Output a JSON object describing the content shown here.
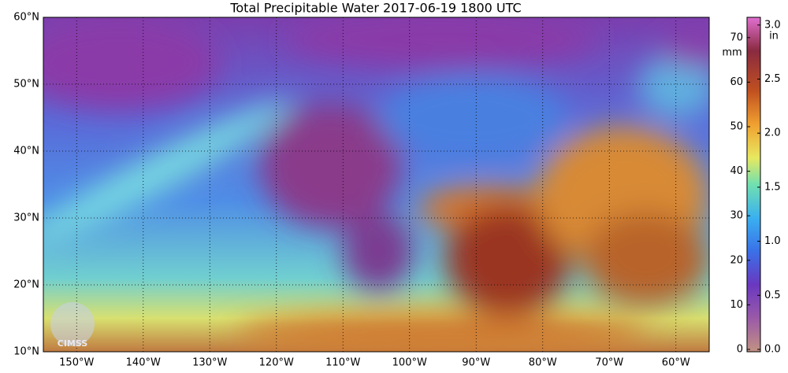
{
  "title": "Total Precipitable Water  2017-06-19 1800 UTC",
  "map": {
    "lat_labels": [
      "10°N",
      "20°N",
      "30°N",
      "40°N",
      "50°N",
      "60°N"
    ],
    "lon_labels": [
      "150°W",
      "140°W",
      "130°W",
      "120°W",
      "110°W",
      "100°W",
      "90°W",
      "80°W",
      "70°W",
      "60°W"
    ],
    "logo": "CIMSS"
  },
  "colorbar": {
    "mm_unit": "mm",
    "in_unit": "in",
    "mm_ticks": [
      "0",
      "10",
      "20",
      "30",
      "40",
      "50",
      "60",
      "70"
    ],
    "in_ticks": [
      "0.0",
      "0.5",
      "1.0",
      "1.5",
      "2.0",
      "2.5",
      "3.0"
    ]
  }
}
